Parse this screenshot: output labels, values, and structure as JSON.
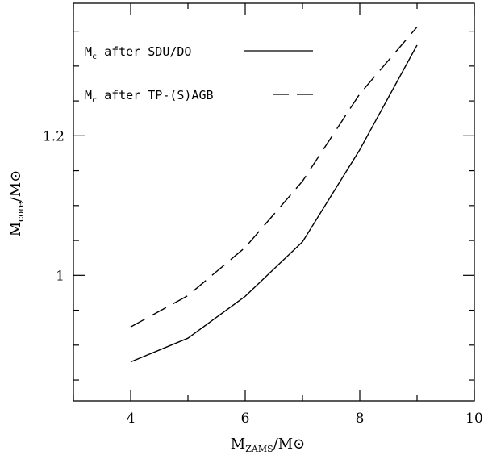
{
  "chart_data": {
    "type": "line",
    "xlabel": {
      "main": "M",
      "sub": "ZAMS",
      "tail": "/M⊙"
    },
    "ylabel": {
      "main": "M",
      "sub": "core",
      "tail": "/M⊙"
    },
    "xlim": [
      3,
      10
    ],
    "ylim": [
      0.82,
      1.39
    ],
    "x_ticks_major": [
      4,
      6,
      8,
      10
    ],
    "x_tick_labels": [
      "4",
      "6",
      "8",
      "10"
    ],
    "x_ticks_minor": [
      3,
      5,
      7,
      9
    ],
    "y_ticks_major": [
      1.0,
      1.2
    ],
    "y_tick_labels": [
      "1",
      "1.2"
    ],
    "y_ticks_minor": [
      0.85,
      0.9,
      0.95,
      1.05,
      1.1,
      1.15,
      1.25,
      1.3,
      1.35
    ],
    "series": [
      {
        "name": "Mc after SDU/DO",
        "legend": {
          "main": "M",
          "sub": "c",
          "rest": " after SDU/DO"
        },
        "style": "solid",
        "x": [
          4,
          5,
          6,
          7,
          8,
          9
        ],
        "y": [
          0.876,
          0.91,
          0.97,
          1.048,
          1.18,
          1.33
        ]
      },
      {
        "name": "Mc after TP-(S)AGB",
        "legend": {
          "main": "M",
          "sub": "c",
          "rest": " after TP-(S)AGB"
        },
        "style": "dashed",
        "x": [
          4,
          5,
          6,
          7,
          8,
          9
        ],
        "y": [
          0.926,
          0.971,
          1.04,
          1.135,
          1.26,
          1.356
        ]
      }
    ]
  }
}
